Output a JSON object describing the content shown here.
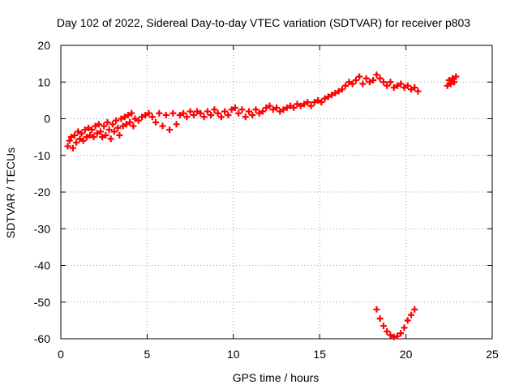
{
  "chart_data": {
    "type": "scatter",
    "title": "Day 102 of 2022, Sidereal Day-to-day VTEC variation (SDTVAR) for receiver p803",
    "xlabel": "GPS time / hours",
    "ylabel": "SDTVAR / TECUs",
    "xlim": [
      0,
      25
    ],
    "ylim": [
      -60,
      20
    ],
    "x_ticks": [
      0,
      5,
      10,
      15,
      20,
      25
    ],
    "y_ticks": [
      -60,
      -50,
      -40,
      -30,
      -20,
      -10,
      0,
      10,
      20
    ],
    "grid": true,
    "legend": "none",
    "series": [
      {
        "color": "#ff0000",
        "marker": "plus",
        "points": [
          [
            0.4,
            -7.5
          ],
          [
            0.5,
            -6.0
          ],
          [
            0.6,
            -5.0
          ],
          [
            0.7,
            -8.0
          ],
          [
            0.8,
            -4.5
          ],
          [
            0.9,
            -6.5
          ],
          [
            1.0,
            -3.5
          ],
          [
            1.1,
            -5.5
          ],
          [
            1.2,
            -4.0
          ],
          [
            1.3,
            -6.0
          ],
          [
            1.4,
            -3.0
          ],
          [
            1.5,
            -5.0
          ],
          [
            1.6,
            -2.5
          ],
          [
            1.7,
            -4.5
          ],
          [
            1.8,
            -3.0
          ],
          [
            1.9,
            -5.0
          ],
          [
            2.0,
            -2.0
          ],
          [
            2.1,
            -4.0
          ],
          [
            2.2,
            -1.5
          ],
          [
            2.3,
            -3.5
          ],
          [
            2.4,
            -5.0
          ],
          [
            2.5,
            -2.0
          ],
          [
            2.6,
            -4.5
          ],
          [
            2.7,
            -1.0
          ],
          [
            2.8,
            -3.0
          ],
          [
            2.9,
            -5.5
          ],
          [
            3.0,
            -1.5
          ],
          [
            3.1,
            -3.5
          ],
          [
            3.2,
            -0.5
          ],
          [
            3.3,
            -2.5
          ],
          [
            3.4,
            -4.5
          ],
          [
            3.5,
            0.0
          ],
          [
            3.6,
            -2.0
          ],
          [
            3.7,
            0.5
          ],
          [
            3.8,
            -1.5
          ],
          [
            3.9,
            1.0
          ],
          [
            4.0,
            -1.0
          ],
          [
            4.1,
            1.5
          ],
          [
            4.2,
            -2.0
          ],
          [
            4.3,
            0.0
          ],
          [
            4.5,
            -0.5
          ],
          [
            4.7,
            0.5
          ],
          [
            4.9,
            1.0
          ],
          [
            5.1,
            1.5
          ],
          [
            5.3,
            0.5
          ],
          [
            5.5,
            -1.0
          ],
          [
            5.7,
            1.5
          ],
          [
            5.9,
            -2.0
          ],
          [
            6.1,
            1.0
          ],
          [
            6.3,
            -3.0
          ],
          [
            6.5,
            1.5
          ],
          [
            6.7,
            -1.5
          ],
          [
            6.9,
            1.0
          ],
          [
            7.1,
            1.5
          ],
          [
            7.3,
            0.5
          ],
          [
            7.5,
            2.0
          ],
          [
            7.7,
            1.0
          ],
          [
            7.9,
            2.0
          ],
          [
            8.1,
            1.5
          ],
          [
            8.3,
            0.5
          ],
          [
            8.5,
            2.0
          ],
          [
            8.7,
            1.0
          ],
          [
            8.9,
            2.5
          ],
          [
            9.1,
            1.5
          ],
          [
            9.3,
            0.5
          ],
          [
            9.5,
            2.0
          ],
          [
            9.7,
            1.0
          ],
          [
            9.9,
            2.5
          ],
          [
            10.1,
            3.0
          ],
          [
            10.3,
            1.5
          ],
          [
            10.5,
            2.5
          ],
          [
            10.7,
            0.5
          ],
          [
            10.9,
            2.0
          ],
          [
            11.1,
            1.0
          ],
          [
            11.3,
            2.5
          ],
          [
            11.5,
            1.5
          ],
          [
            11.7,
            2.0
          ],
          [
            11.9,
            3.0
          ],
          [
            12.1,
            3.5
          ],
          [
            12.3,
            2.5
          ],
          [
            12.5,
            3.0
          ],
          [
            12.7,
            2.0
          ],
          [
            12.9,
            2.5
          ],
          [
            13.1,
            3.0
          ],
          [
            13.3,
            3.5
          ],
          [
            13.5,
            3.0
          ],
          [
            13.7,
            4.0
          ],
          [
            13.9,
            3.5
          ],
          [
            14.1,
            4.0
          ],
          [
            14.3,
            4.5
          ],
          [
            14.5,
            3.5
          ],
          [
            14.7,
            4.5
          ],
          [
            14.9,
            5.0
          ],
          [
            15.1,
            4.5
          ],
          [
            15.3,
            5.5
          ],
          [
            15.5,
            6.0
          ],
          [
            15.7,
            6.5
          ],
          [
            15.9,
            7.0
          ],
          [
            16.1,
            7.5
          ],
          [
            16.3,
            8.0
          ],
          [
            16.5,
            9.0
          ],
          [
            16.7,
            10.0
          ],
          [
            16.9,
            9.5
          ],
          [
            17.1,
            10.5
          ],
          [
            17.3,
            11.5
          ],
          [
            17.5,
            9.5
          ],
          [
            17.7,
            11.0
          ],
          [
            17.9,
            10.0
          ],
          [
            18.1,
            10.5
          ],
          [
            18.3,
            12.0
          ],
          [
            18.5,
            11.0
          ],
          [
            18.7,
            10.0
          ],
          [
            18.9,
            9.0
          ],
          [
            19.1,
            10.0
          ],
          [
            19.3,
            8.5
          ],
          [
            19.5,
            9.0
          ],
          [
            19.7,
            9.5
          ],
          [
            19.9,
            8.5
          ],
          [
            20.1,
            9.0
          ],
          [
            20.3,
            8.0
          ],
          [
            20.5,
            8.5
          ],
          [
            20.7,
            7.5
          ],
          [
            22.4,
            9.0
          ],
          [
            22.5,
            10.5
          ],
          [
            22.6,
            9.5
          ],
          [
            22.7,
            11.0
          ],
          [
            22.8,
            10.0
          ],
          [
            22.9,
            11.5
          ],
          [
            18.3,
            -52.0
          ],
          [
            18.5,
            -54.5
          ],
          [
            18.7,
            -56.5
          ],
          [
            18.9,
            -58.0
          ],
          [
            19.1,
            -59.0
          ],
          [
            19.3,
            -59.5
          ],
          [
            19.5,
            -59.3
          ],
          [
            19.7,
            -58.5
          ],
          [
            19.9,
            -57.0
          ],
          [
            20.1,
            -55.0
          ],
          [
            20.3,
            -53.5
          ],
          [
            20.5,
            -52.0
          ]
        ]
      }
    ]
  }
}
